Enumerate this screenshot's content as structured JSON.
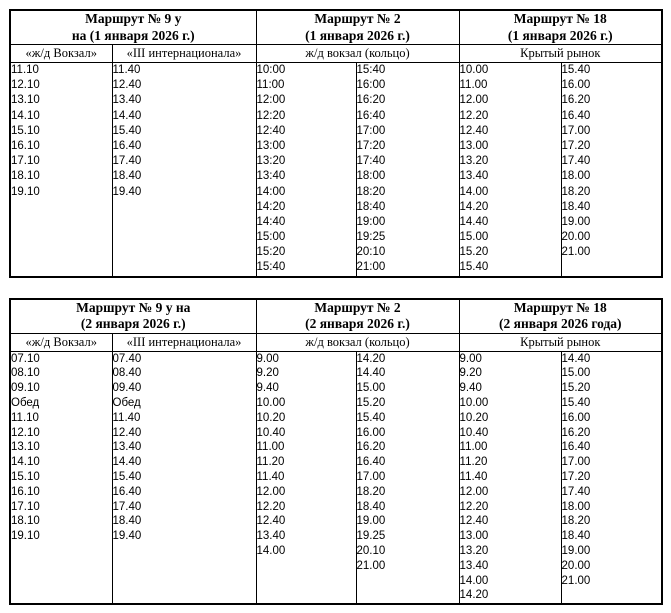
{
  "page": {
    "background": "#ffffff",
    "border_color": "#000000",
    "text_color": "#000000"
  },
  "tables": [
    {
      "sections": [
        {
          "title_lines": [
            "Маршрут № 9 у",
            "на (1 января 2026 г.)"
          ],
          "stops": [
            "«ж/д Вокзал»",
            "«III интернационала»"
          ],
          "columns": [
            [
              "11.10",
              "12.10",
              "13.10",
              "14.10",
              "15.10",
              "16.10",
              "17.10",
              "18.10",
              "19.10"
            ],
            [
              "11.40",
              "12.40",
              "13.40",
              "14.40",
              "15.40",
              "16.40",
              "17.40",
              "18.40",
              "19.40"
            ]
          ]
        },
        {
          "title_lines": [
            "Маршрут № 2",
            "(1 января 2026 г.)"
          ],
          "stops": [
            "ж/д вокзал (кольцо)"
          ],
          "columns": [
            [
              "10:00",
              "11:00",
              "12:00",
              "12:20",
              "12:40",
              "13:00",
              "13:20",
              "13:40",
              "14:00",
              "14:20",
              "14:40",
              "15:00",
              "15:20",
              "15:40"
            ],
            [
              "15:40",
              "16:00",
              "16:20",
              "16:40",
              "17:00",
              "17:20",
              "17:40",
              "18:00",
              "18:20",
              "18:40",
              "19:00",
              "19:25",
              "20:10",
              "21:00"
            ]
          ]
        },
        {
          "title_lines": [
            "Маршрут № 18",
            "(1 января 2026 г.)"
          ],
          "stops": [
            "Крытый рынок"
          ],
          "columns": [
            [
              "10.00",
              "11.00",
              "12.00",
              "12.20",
              "12.40",
              "13.00",
              "13.20",
              "13.40",
              "14.00",
              "14.20",
              "14.40",
              "15.00",
              "15.20",
              "15.40"
            ],
            [
              "15.40",
              "16.00",
              "16.20",
              "16.40",
              "17.00",
              "17.20",
              "17.40",
              "18.00",
              "18.20",
              "18.40",
              "19.00",
              "20.00",
              "21.00"
            ]
          ]
        }
      ]
    },
    {
      "sections": [
        {
          "title_lines": [
            "Маршрут № 9 у на",
            "(2 января 2026 г.)"
          ],
          "stops": [
            "«ж/д Вокзал»",
            "«III интернационала»"
          ],
          "columns": [
            [
              "07.10",
              "08.10",
              "09.10",
              "Обед",
              "11.10",
              "12.10",
              "13.10",
              "14.10",
              "15.10",
              "16.10",
              "17.10",
              "18.10",
              "19.10"
            ],
            [
              "07.40",
              "08.40",
              "09.40",
              "Обед",
              "11.40",
              "12.40",
              "13.40",
              "14.40",
              "15.40",
              "16.40",
              "17.40",
              "18.40",
              "19.40"
            ]
          ]
        },
        {
          "title_lines": [
            "Маршрут № 2",
            "(2 января 2026 г.)"
          ],
          "stops": [
            "ж/д вокзал (кольцо)"
          ],
          "columns": [
            [
              "9.00",
              "9.20",
              "9.40",
              "10.00",
              "10.20",
              "10.40",
              "11.00",
              "11.20",
              "11.40",
              "12.00",
              "12.20",
              "12.40",
              "13.40",
              "14.00"
            ],
            [
              "14.20",
              "14.40",
              "15.00",
              "15.20",
              "15.40",
              "16.00",
              "16.20",
              "16.40",
              "17.00",
              "18.20",
              "18.40",
              "19.00",
              "19.25",
              "20.10",
              "21.00"
            ]
          ]
        },
        {
          "title_lines": [
            "Маршрут № 18",
            "(2 января 2026 года)"
          ],
          "stops": [
            "Крытый рынок"
          ],
          "columns": [
            [
              "9.00",
              "9.20",
              "9.40",
              "10.00",
              "10.20",
              "10.40",
              "11.00",
              "11.20",
              "11.40",
              "12.00",
              "12.20",
              "12.40",
              "13.00",
              "13.20",
              "13.40",
              "14.00",
              "14.20"
            ],
            [
              "14.40",
              "15.00",
              "15.20",
              "15.40",
              "16.00",
              "16.20",
              "16.40",
              "17.00",
              "17.20",
              "17.40",
              "18.00",
              "18.20",
              "18.40",
              "19.00",
              "20.00",
              "21.00"
            ]
          ]
        }
      ]
    }
  ]
}
